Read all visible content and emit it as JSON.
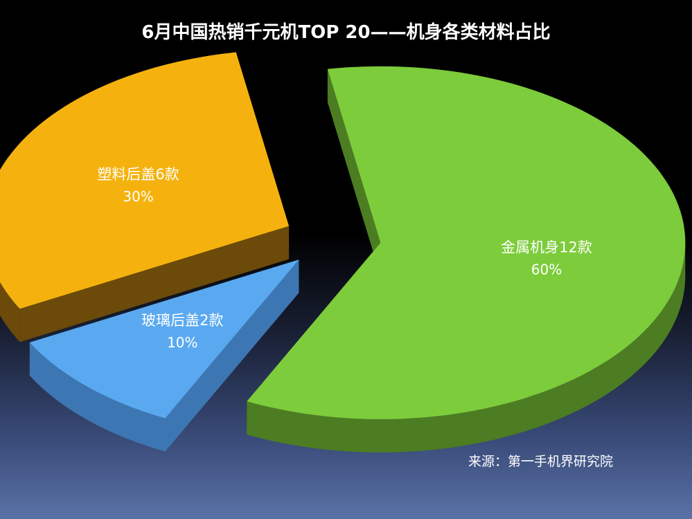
{
  "chart_data": {
    "type": "pie",
    "style": "3d-exploded",
    "title": "6月中国热销千元机TOP 20——机身各类材料占比",
    "slices": [
      {
        "label": "金属机身12款",
        "value": 60,
        "count": 12,
        "percent_label": "60%",
        "color": "#7dcc3b",
        "side_color": "#4c7d22"
      },
      {
        "label": "玻璃后盖2款",
        "value": 10,
        "count": 2,
        "percent_label": "10%",
        "color": "#5aa9f0",
        "side_color": "#3d77b3"
      },
      {
        "label": "塑料后盖6款",
        "value": 30,
        "count": 6,
        "percent_label": "30%",
        "color": "#f5b20e",
        "side_color": "#6b4a0a"
      }
    ],
    "source": "来源：第一手机界研究院"
  }
}
